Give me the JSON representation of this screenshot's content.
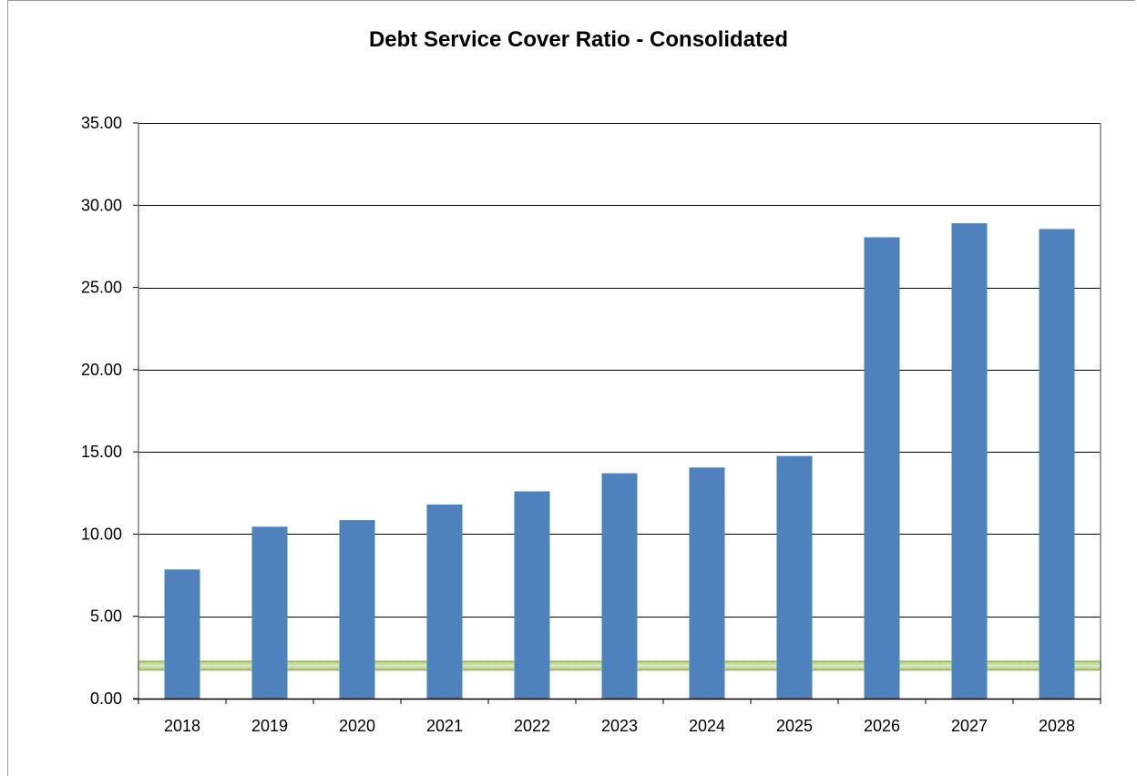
{
  "chart_data": {
    "type": "bar",
    "title": "Debt Service Cover Ratio - Consolidated",
    "xlabel": "",
    "ylabel": "",
    "categories": [
      "2018",
      "2019",
      "2020",
      "2021",
      "2022",
      "2023",
      "2024",
      "2025",
      "2026",
      "2027",
      "2028"
    ],
    "values": [
      7.85,
      10.45,
      10.85,
      11.8,
      12.6,
      13.7,
      14.05,
      14.75,
      28.05,
      28.9,
      28.55
    ],
    "ylim": [
      0,
      35
    ],
    "yticks": [
      "0.00",
      "5.00",
      "10.00",
      "15.00",
      "20.00",
      "25.00",
      "30.00",
      "35.00"
    ],
    "grid": true,
    "legend": "none",
    "threshold_band": {
      "values": [
        1.75,
        2.25
      ],
      "color": "#9bbb59"
    },
    "colors": {
      "bar": "#4f81bd",
      "grid": "#000000",
      "band": "#9bbb59"
    }
  }
}
